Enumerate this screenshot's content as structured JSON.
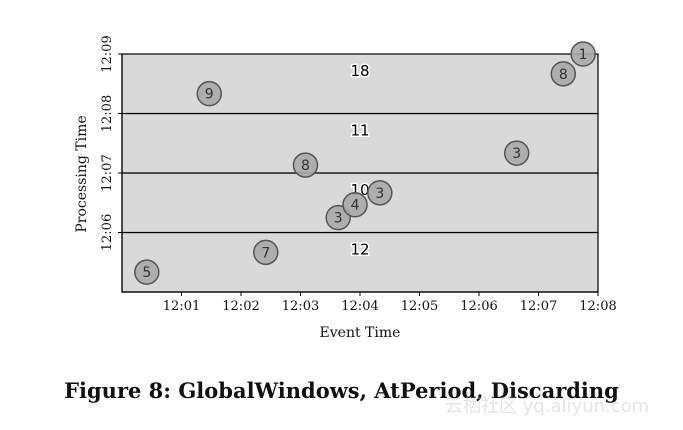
{
  "caption": "Figure 8: GlobalWindows, AtPeriod, Discarding",
  "watermark": "云栖社区 yq.aliyun.com",
  "chart_data": {
    "type": "scatter",
    "title": "",
    "xlabel": "Event Time",
    "ylabel": "Processing Time",
    "x_ticks": [
      "12:01",
      "12:02",
      "12:03",
      "12:04",
      "12:05",
      "12:06",
      "12:07",
      "12:08"
    ],
    "y_ticks": [
      "12:06",
      "12:07",
      "12:08",
      "12:09"
    ],
    "xlim": [
      "12:00",
      "12:08"
    ],
    "ylim": [
      "12:05",
      "12:09"
    ],
    "grid": false,
    "pane_fill": "#d9d9d9",
    "point_fill": "#a8a8a8",
    "panes": [
      {
        "from": "12:05",
        "to": "12:06",
        "sum": "12"
      },
      {
        "from": "12:06",
        "to": "12:07",
        "sum": "10"
      },
      {
        "from": "12:07",
        "to": "12:08",
        "sum": "11"
      },
      {
        "from": "12:08",
        "to": "12:09",
        "sum": "18"
      }
    ],
    "points": [
      {
        "event": "12:00:25",
        "processing": "12:05:20",
        "value": "5"
      },
      {
        "event": "12:02:25",
        "processing": "12:05:40",
        "value": "7"
      },
      {
        "event": "12:03:38",
        "processing": "12:06:15",
        "value": "3"
      },
      {
        "event": "12:03:55",
        "processing": "12:06:28",
        "value": "4"
      },
      {
        "event": "12:04:20",
        "processing": "12:06:40",
        "value": "3"
      },
      {
        "event": "12:03:05",
        "processing": "12:07:08",
        "value": "8"
      },
      {
        "event": "12:06:38",
        "processing": "12:07:20",
        "value": "3"
      },
      {
        "event": "12:01:28",
        "processing": "12:08:20",
        "value": "9"
      },
      {
        "event": "12:07:25",
        "processing": "12:08:40",
        "value": "8"
      },
      {
        "event": "12:07:45",
        "processing": "12:09:00",
        "value": "1"
      }
    ]
  }
}
